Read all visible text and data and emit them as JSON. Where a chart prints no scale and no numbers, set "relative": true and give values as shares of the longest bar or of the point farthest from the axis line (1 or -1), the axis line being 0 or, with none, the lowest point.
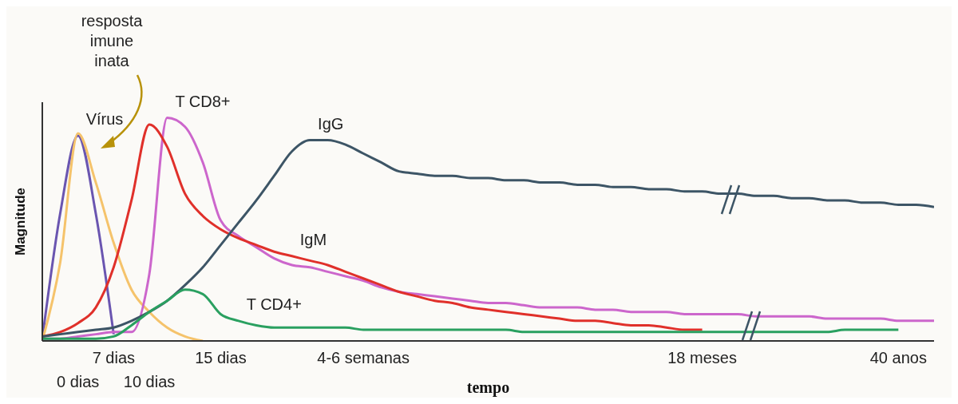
{
  "chart_data": {
    "type": "line",
    "xlabel": "tempo",
    "ylabel": "Magnitude",
    "relative": true,
    "categories": [
      null,
      null,
      "0 dias",
      null,
      "7 dias",
      null,
      "10 dias",
      null,
      null,
      null,
      "15 dias",
      null,
      null,
      null,
      null,
      null,
      null,
      null,
      "4-6 semanas",
      null,
      null,
      null,
      null,
      null,
      null,
      null,
      null,
      null,
      null,
      null,
      null,
      null,
      null,
      null,
      null,
      null,
      null,
      "18 meses",
      null,
      null,
      null,
      null,
      null,
      null,
      null,
      null,
      null,
      null,
      "40 anos",
      null,
      null
    ],
    "annotations": [
      "resposta imune inata"
    ],
    "grid": false,
    "legend": false,
    "marker": "none",
    "line_style": "solid",
    "series": [
      {
        "name": "Vírus",
        "color": "#6a55b0",
        "values": [
          0.01,
          0.57,
          0.92,
          0.57,
          0.03,
          null,
          null,
          null,
          null,
          null,
          null,
          null,
          null,
          null,
          null,
          null,
          null,
          null,
          null,
          null,
          null,
          null,
          null,
          null,
          null,
          null,
          null,
          null,
          null,
          null,
          null,
          null,
          null,
          null,
          null,
          null,
          null,
          null,
          null,
          null,
          null,
          null,
          null,
          null,
          null,
          null,
          null,
          null,
          null,
          null,
          null
        ]
      },
      {
        "color": "#f5c36b",
        "values": [
          0,
          0.35,
          0.93,
          0.71,
          0.44,
          0.23,
          0.13,
          0.06,
          0.02,
          0,
          null,
          null,
          null,
          null,
          null,
          null,
          null,
          null,
          null,
          null,
          null,
          null,
          null,
          null,
          null,
          null,
          null,
          null,
          null,
          null,
          null,
          null,
          null,
          null,
          null,
          null,
          null,
          null,
          null,
          null,
          null,
          null,
          null,
          null,
          null,
          null,
          null,
          null,
          null,
          null,
          null
        ]
      },
      {
        "name": "T CD8+",
        "color": "#cc66cc",
        "values": [
          0.01,
          0.01,
          0.02,
          0.03,
          0.04,
          0.04,
          0.3,
          1,
          0.96,
          0.8,
          0.54,
          0.47,
          0.42,
          0.37,
          0.34,
          0.33,
          0.31,
          0.29,
          0.27,
          0.24,
          0.22,
          0.21,
          0.2,
          0.19,
          0.18,
          0.17,
          0.17,
          0.16,
          0.15,
          0.15,
          0.15,
          0.14,
          0.14,
          0.13,
          0.13,
          0.13,
          0.12,
          0.12,
          0.12,
          0.12,
          0.11,
          0.11,
          0.11,
          0.11,
          0.1,
          0.1,
          0.1,
          0.1,
          0.09,
          0.09,
          0.09
        ]
      },
      {
        "name": "IgM",
        "color": "#e0302a",
        "values": [
          0.02,
          0.04,
          0.08,
          0.15,
          0.33,
          0.63,
          0.97,
          0.87,
          0.66,
          0.56,
          0.5,
          0.46,
          0.43,
          0.4,
          0.38,
          0.36,
          0.34,
          0.31,
          0.28,
          0.25,
          0.22,
          0.2,
          0.18,
          0.17,
          0.15,
          0.14,
          0.13,
          0.12,
          0.11,
          0.1,
          0.09,
          0.09,
          0.08,
          0.07,
          0.07,
          0.06,
          0.05,
          0.05,
          null,
          null,
          null,
          null,
          null,
          null,
          null,
          null,
          null,
          null,
          null,
          null,
          null
        ]
      },
      {
        "name": "IgG",
        "color": "#3d5566",
        "values": [
          0.02,
          0.03,
          0.04,
          0.05,
          0.06,
          0.09,
          0.13,
          0.18,
          0.25,
          0.33,
          0.43,
          0.53,
          0.63,
          0.74,
          0.85,
          0.9,
          0.9,
          0.88,
          0.84,
          0.8,
          0.76,
          0.75,
          0.74,
          0.74,
          0.73,
          0.73,
          0.72,
          0.72,
          0.71,
          0.71,
          0.7,
          0.7,
          0.69,
          0.69,
          0.68,
          0.68,
          0.67,
          0.67,
          0.66,
          0.66,
          0.65,
          0.65,
          0.64,
          0.64,
          0.63,
          0.63,
          0.62,
          0.62,
          0.61,
          0.61,
          0.6
        ]
      },
      {
        "name": "T CD4+",
        "color": "#2aa060",
        "values": [
          0.01,
          0.01,
          0.01,
          0.01,
          0.02,
          0.07,
          0.13,
          0.18,
          0.23,
          0.21,
          0.12,
          0.09,
          0.07,
          0.06,
          0.06,
          0.06,
          0.06,
          0.06,
          0.05,
          0.05,
          0.05,
          0.05,
          0.05,
          0.05,
          0.05,
          0.05,
          0.05,
          0.04,
          0.04,
          0.04,
          0.04,
          0.04,
          0.04,
          0.04,
          0.04,
          0.04,
          0.04,
          0.04,
          0.04,
          0.04,
          0.04,
          0.04,
          0.04,
          0.04,
          0.04,
          0.05,
          0.05,
          0.05,
          0.05,
          null,
          null
        ]
      }
    ]
  }
}
